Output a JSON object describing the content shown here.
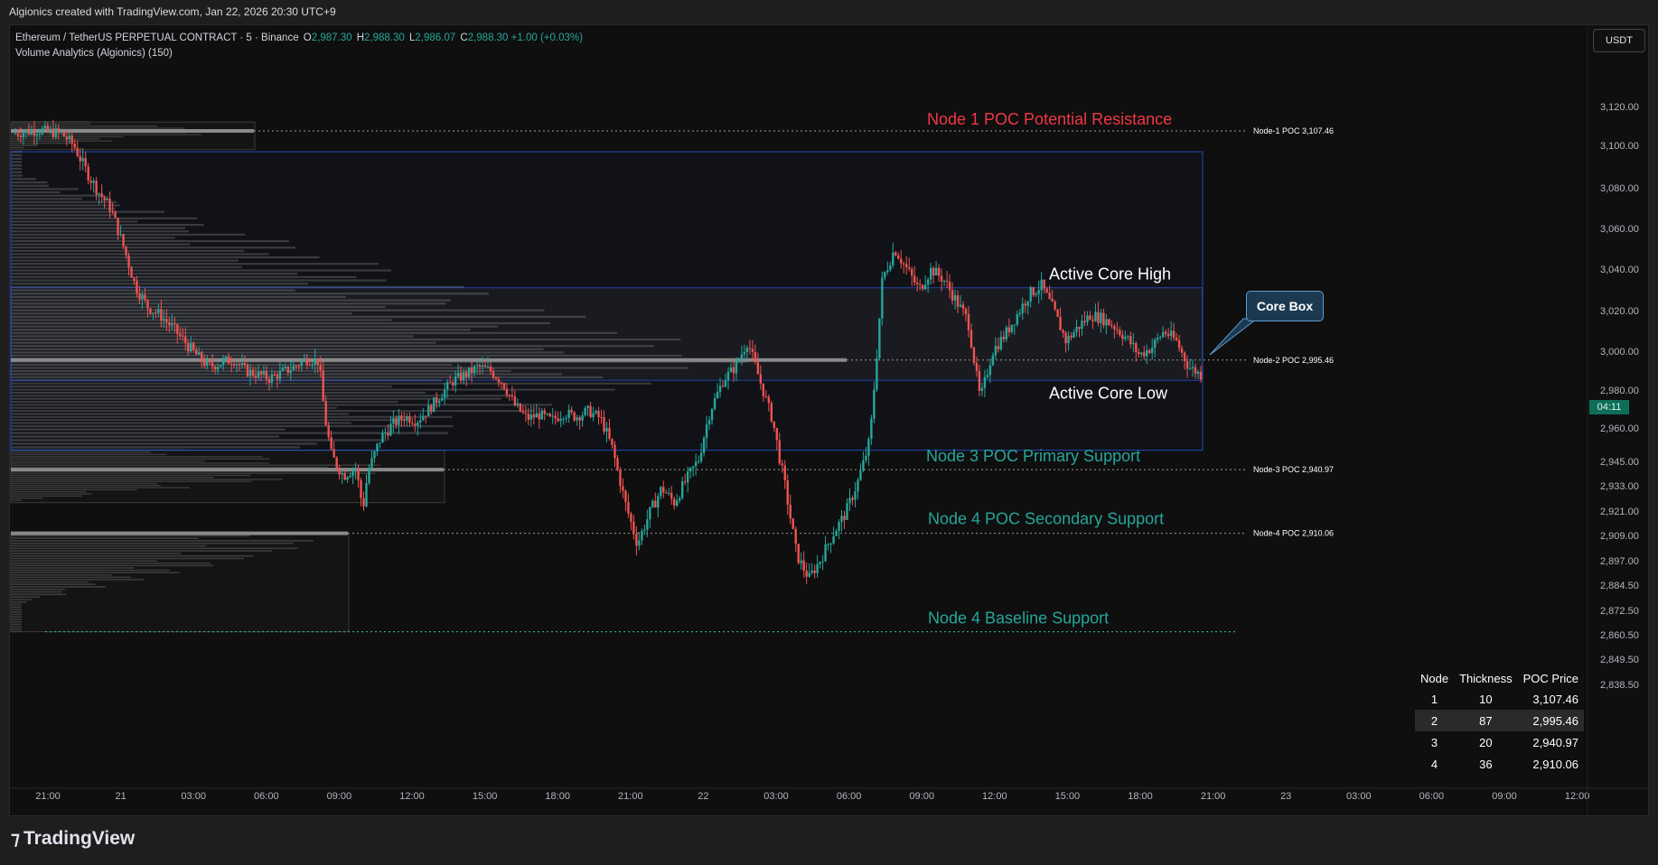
{
  "top_caption": "Algionics created with TradingView.com, Jan 22, 2026 20:30 UTC+9",
  "legend": {
    "symbol": "Ethereum / TetherUS PERPETUAL CONTRACT · 5 · Binance",
    "open_label": "O",
    "open": "2,987.30",
    "high_label": "H",
    "high": "2,988.30",
    "low_label": "L",
    "low": "2,986.07",
    "close_label": "C",
    "close": "2,988.30",
    "change": "+1.00 (+0.03%)",
    "indicator": "Volume Analytics (Algionics) (150)"
  },
  "currency": "USDT",
  "countdown": "04:11",
  "brand": "TradingView",
  "core_box_label": "Core Box",
  "colors": {
    "up": "#26a69a",
    "down": "#ef5350",
    "resistance": "#f23645",
    "support": "#26a69a",
    "core_box": "#2962ff"
  },
  "chart_data": {
    "type": "candlestick",
    "symbol": "ETHUSDT.P",
    "interval": "5",
    "price_axis_ticks": [
      3120,
      3100,
      3080,
      3060,
      3040,
      3020,
      3000,
      2980,
      2960,
      2945,
      2933,
      2921,
      2909,
      2897,
      2884.5,
      2872.5,
      2860.5,
      2849.5,
      2838.5
    ],
    "price_axis_labels": [
      "3,120.00",
      "3,100.00",
      "3,080.00",
      "3,060.00",
      "3,040.00",
      "3,020.00",
      "3,000.00",
      "2,980.00",
      "2,960.00",
      "2,945.00",
      "2,933.00",
      "2,921.00",
      "2,909.00",
      "2,897.00",
      "2,884.50",
      "2,872.50",
      "2,860.50",
      "2,849.50",
      "2,838.50"
    ],
    "time_axis_labels": [
      "21:00",
      "21",
      "03:00",
      "06:00",
      "09:00",
      "12:00",
      "15:00",
      "18:00",
      "21:00",
      "22",
      "03:00",
      "06:00",
      "09:00",
      "12:00",
      "15:00",
      "18:00",
      "21:00",
      "23",
      "03:00",
      "06:00",
      "09:00",
      "12:00"
    ],
    "price_path": [
      [
        0,
        3106
      ],
      [
        2,
        3108
      ],
      [
        4,
        3106
      ],
      [
        5,
        3100
      ],
      [
        6,
        3088
      ],
      [
        7,
        3078
      ],
      [
        8,
        3070
      ],
      [
        9,
        3052
      ],
      [
        10,
        3032
      ],
      [
        11,
        3022
      ],
      [
        12,
        3018
      ],
      [
        13,
        3012
      ],
      [
        14,
        3005
      ],
      [
        15,
        2998
      ],
      [
        16,
        2992
      ],
      [
        17,
        2994
      ],
      [
        18,
        2996
      ],
      [
        19,
        2990
      ],
      [
        20,
        2988
      ],
      [
        21,
        2986
      ],
      [
        22,
        2989
      ],
      [
        23,
        2992
      ],
      [
        24,
        2996
      ],
      [
        25,
        2995
      ],
      [
        25.5,
        2965
      ],
      [
        26,
        2948
      ],
      [
        27,
        2938
      ],
      [
        28,
        2942
      ],
      [
        28.6,
        2922
      ],
      [
        29,
        2940
      ],
      [
        30,
        2955
      ],
      [
        31,
        2962
      ],
      [
        32,
        2966
      ],
      [
        33,
        2964
      ],
      [
        34,
        2970
      ],
      [
        35,
        2978
      ],
      [
        36,
        2985
      ],
      [
        37,
        2988
      ],
      [
        38,
        2992
      ],
      [
        39,
        2990
      ],
      [
        40,
        2984
      ],
      [
        41,
        2972
      ],
      [
        42,
        2965
      ],
      [
        43,
        2967
      ],
      [
        44,
        2964
      ],
      [
        45,
        2968
      ],
      [
        46,
        2966
      ],
      [
        47,
        2969
      ],
      [
        48,
        2965
      ],
      [
        49,
        2950
      ],
      [
        50,
        2925
      ],
      [
        51,
        2905
      ],
      [
        52,
        2920
      ],
      [
        53,
        2932
      ],
      [
        54,
        2925
      ],
      [
        55,
        2936
      ],
      [
        56,
        2946
      ],
      [
        57,
        2970
      ],
      [
        58,
        2985
      ],
      [
        59,
        2992
      ],
      [
        60,
        3005
      ],
      [
        61,
        2985
      ],
      [
        62,
        2965
      ],
      [
        63,
        2935
      ],
      [
        64,
        2900
      ],
      [
        65,
        2888
      ],
      [
        66,
        2898
      ],
      [
        67,
        2910
      ],
      [
        68,
        2920
      ],
      [
        69,
        2935
      ],
      [
        70,
        2955
      ],
      [
        71,
        3035
      ],
      [
        72,
        3050
      ],
      [
        73,
        3040
      ],
      [
        74,
        3030
      ],
      [
        75,
        3040
      ],
      [
        76,
        3035
      ],
      [
        77,
        3025
      ],
      [
        78,
        3015
      ],
      [
        79,
        2975
      ],
      [
        80,
        3000
      ],
      [
        81,
        3008
      ],
      [
        82,
        3018
      ],
      [
        83,
        3028
      ],
      [
        84,
        3032
      ],
      [
        85,
        3020
      ],
      [
        86,
        3005
      ],
      [
        87,
        3012
      ],
      [
        88,
        3018
      ],
      [
        89,
        3016
      ],
      [
        90,
        3012
      ],
      [
        91,
        3006
      ],
      [
        92,
        2998
      ],
      [
        93,
        3002
      ],
      [
        94,
        3010
      ],
      [
        95,
        3005
      ],
      [
        96,
        2992
      ],
      [
        97,
        2988
      ]
    ],
    "volume_nodes": [
      {
        "node": "1",
        "thickness": "10",
        "poc": 3107.46,
        "poc_label": "Node-1 POC 3,107.46",
        "price_label": "3,107.46",
        "zone_top": 3112,
        "zone_bottom": 3098
      },
      {
        "node": "2",
        "thickness": "87",
        "poc": 2995.46,
        "poc_label": "Node-2 POC 2,995.46",
        "price_label": "2,995.46",
        "zone_top": 3097,
        "zone_bottom": 2950
      },
      {
        "node": "3",
        "thickness": "20",
        "poc": 2940.97,
        "poc_label": "Node-3 POC 2,940.97",
        "price_label": "2,940.97",
        "zone_top": 2950,
        "zone_bottom": 2925
      },
      {
        "node": "4",
        "thickness": "36",
        "poc": 2910.06,
        "poc_label": "Node-4 POC 2,910.06",
        "price_label": "2,910.06",
        "zone_top": 2910,
        "zone_bottom": 2862
      }
    ],
    "core_box": {
      "outer_top": 3097,
      "outer_bottom": 2950,
      "active_high": 3031,
      "active_low": 2985
    },
    "annotations": {
      "node1": "Node 1 POC Potential Resistance",
      "core_high": "Active Core High",
      "core_low": "Active Core Low",
      "node3": "Node 3 POC Primary Support",
      "node4": "Node 4 POC Secondary Support",
      "baseline": "Node 4 Baseline Support"
    },
    "baseline_price": 2862,
    "table": {
      "headers": [
        "Node",
        "Thickness",
        "POC Price"
      ]
    }
  }
}
